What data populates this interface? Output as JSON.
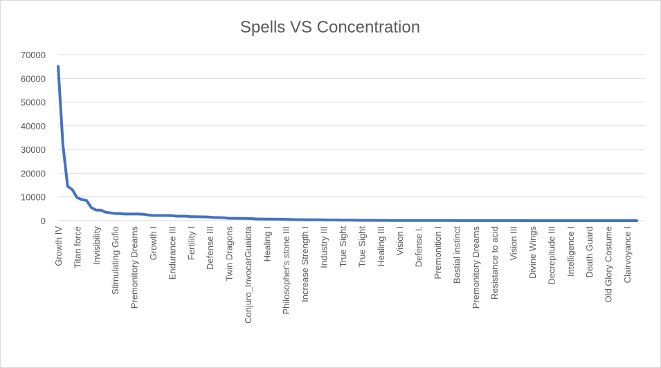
{
  "chart_data": {
    "type": "line",
    "title": "Spells VS Concentration",
    "xlabel": "",
    "ylabel": "",
    "ylim": [
      0,
      70000
    ],
    "yticks": [
      0,
      10000,
      20000,
      30000,
      40000,
      50000,
      60000,
      70000
    ],
    "ytick_labels": [
      "0",
      "10000",
      "20000",
      "30000",
      "40000",
      "50000",
      "60000",
      "70000"
    ],
    "grid": true,
    "legend": "none",
    "line_color": "#4472c4",
    "x_tick_labels": [
      "Growth IV",
      "Titan force",
      "Invisibility",
      "Stimulating Gofio",
      "Premonitory Dreams",
      "Growth I",
      "Endurance III",
      "Fertility I",
      "Defense III",
      "Twin Dragons",
      "Conjuro_InvocarGuaiota",
      "Healing I",
      "Philosopher's stone III",
      "Increase Strength I",
      "Industry III",
      "True Sight",
      "True Sight",
      "Healing III",
      "Vision I",
      "Defense I.",
      "Premonition I",
      "Bestial instinct",
      "Premonitory Dreams",
      "Resistance to acid",
      "Vision III",
      "Divine Wings",
      "Decrepitude III",
      "Intelligence I",
      "Death Guard",
      "Old Glory Costume",
      "Clairvoyance I"
    ],
    "values": [
      65000,
      32000,
      14500,
      13000,
      9700,
      8900,
      8500,
      5500,
      4500,
      4400,
      3600,
      3300,
      3000,
      3000,
      2800,
      2800,
      2800,
      2800,
      2700,
      2400,
      2200,
      2200,
      2200,
      2200,
      2100,
      1900,
      1900,
      1900,
      1700,
      1650,
      1600,
      1600,
      1500,
      1300,
      1300,
      1200,
      1000,
      1000,
      950,
      950,
      900,
      850,
      700,
      700,
      650,
      650,
      600,
      600,
      550,
      500,
      450,
      400,
      400,
      380,
      360,
      340,
      320,
      300,
      280,
      260,
      240,
      220,
      200,
      180,
      160,
      150,
      140,
      130,
      120,
      110,
      100,
      95,
      90,
      85,
      80,
      75,
      70,
      65,
      60,
      55,
      50,
      48,
      46,
      44,
      42,
      40,
      38,
      36,
      34,
      32,
      30,
      28,
      26,
      24,
      22,
      20,
      18,
      16,
      14,
      12,
      10,
      9,
      8,
      7,
      6,
      5,
      4,
      3,
      2,
      1,
      1,
      1,
      1,
      1,
      1,
      1,
      1,
      1,
      1,
      1,
      1,
      1,
      1
    ]
  }
}
